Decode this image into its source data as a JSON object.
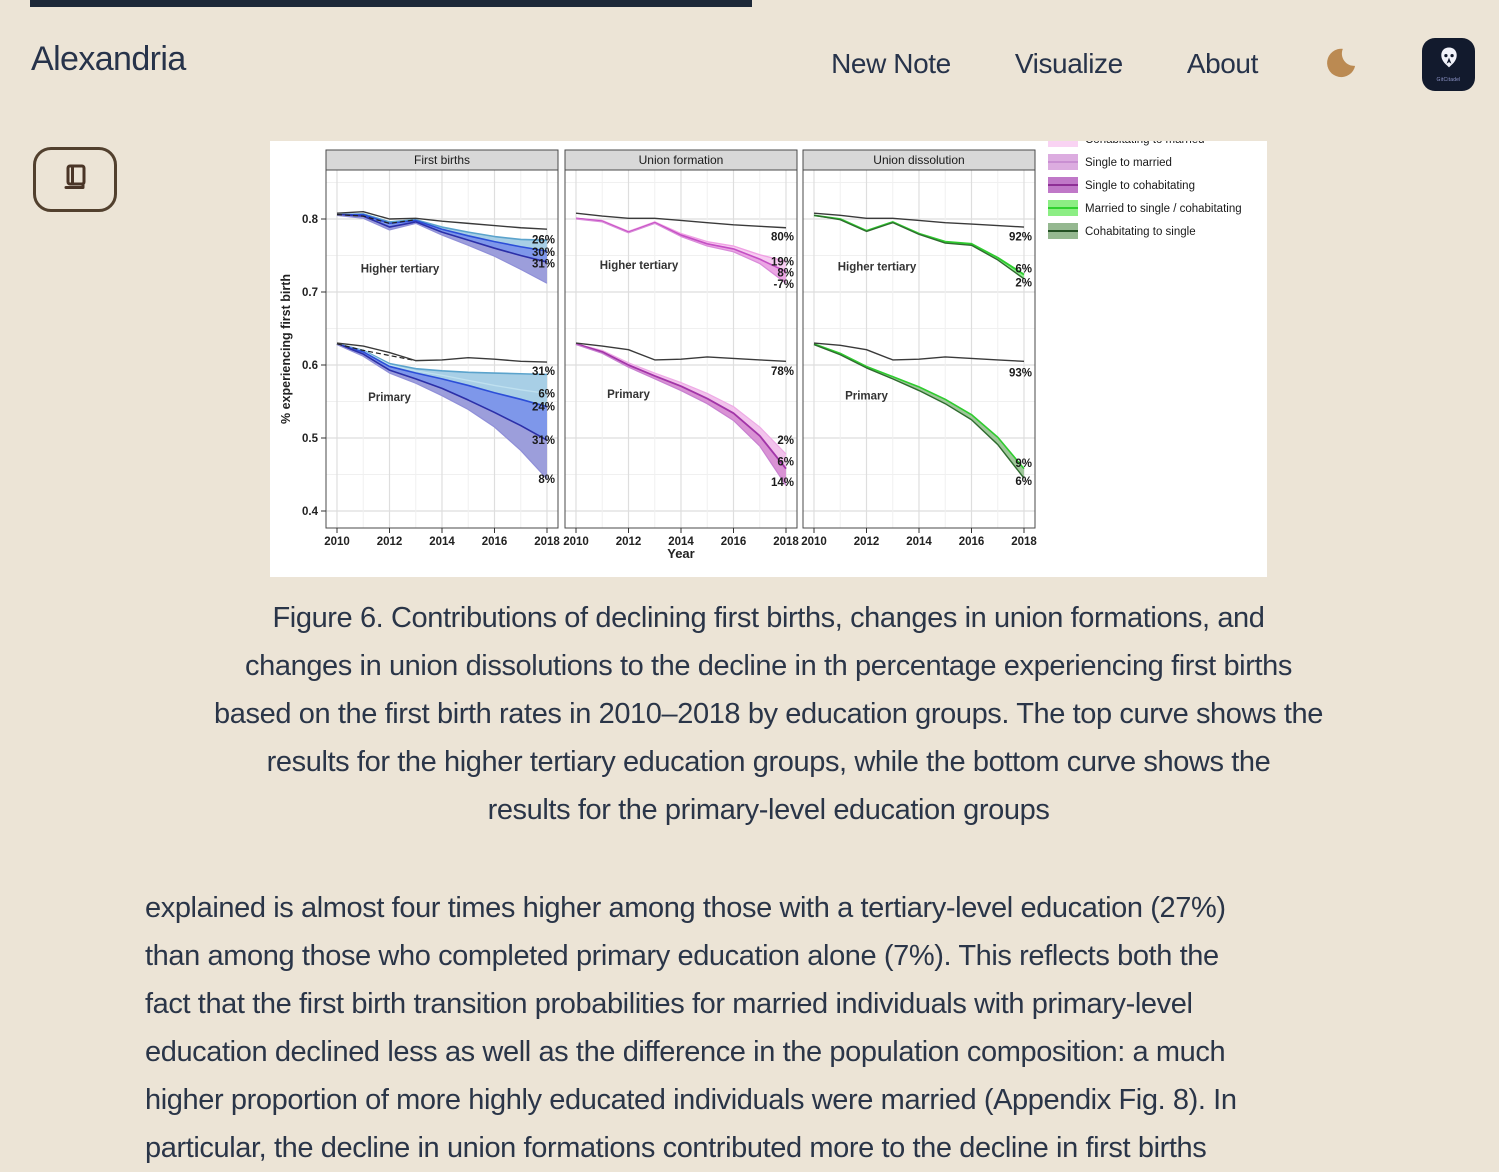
{
  "theme": {
    "page_bg": "#ece4d6",
    "ink": "#2a3548",
    "brown_accent": "#52402e",
    "moon_color": "#bb8a52",
    "badge_bg": "#121a2d",
    "topstrip_color": "#1d2838"
  },
  "header": {
    "brand": "Alexandria",
    "nav": [
      {
        "label": "New Note"
      },
      {
        "label": "Visualize"
      },
      {
        "label": "About"
      }
    ],
    "badge_label": "GitCitadel"
  },
  "figure_caption": {
    "lines": [
      "Figure 6. Contributions of declining first births, changes in union formations, and",
      "changes in union dissolutions to the decline in th percentage experiencing first births",
      "based on the first birth rates in 2010–2018 by education groups. The top curve shows the",
      "results for the higher tertiary education groups, while the bottom curve shows the",
      "results for the primary-level education groups"
    ]
  },
  "article": {
    "lines": [
      "explained is almost four times higher among those with a tertiary-level education (27%)",
      "than among those who completed primary education alone (7%). This reflects both the",
      "fact that the first birth transition probabilities for married individuals with primary-level",
      "education declined less as well as the difference in the population composition: a much",
      "higher proportion of more highly educated individuals were married (Appendix Fig. 8). In"
    ],
    "clipped_continuation": "particular, the decline in union formations contributed more to the decline in first births"
  },
  "chart_data": {
    "type": "line",
    "xlabel": "Year",
    "ylabel": "% experiencing first birth",
    "x": [
      2010,
      2011,
      2012,
      2013,
      2014,
      2015,
      2016,
      2017,
      2018
    ],
    "xticks": [
      2010,
      2012,
      2014,
      2016,
      2018
    ],
    "yticks": [
      0.4,
      0.5,
      0.6,
      0.7,
      0.8
    ],
    "ylim": [
      0.377,
      0.867
    ],
    "grid": "on",
    "legend_position": "top-right",
    "legend": [
      {
        "label": "Cohabitating to married",
        "swatch": "#f9d3f3",
        "line": "#f0b3e8",
        "clipped": true
      },
      {
        "label": "Single to married",
        "swatch": "#dcace0",
        "line": "#c98fd2",
        "clipped": false
      },
      {
        "label": "Single to cohabitating",
        "swatch": "#c078c8",
        "line": "#8e2f96",
        "clipped": false
      },
      {
        "label": "Married to single / cohabitating",
        "swatch": "#8cee84",
        "line": "#2fd12f",
        "clipped": false
      },
      {
        "label": "Cohabitating to single",
        "swatch": "#95b890",
        "line": "#235023",
        "clipped": false
      }
    ],
    "panels": [
      {
        "title": "First births",
        "groups": [
          {
            "name": "Higher tertiary",
            "name_at": {
              "year": 2012.4,
              "v": 0.732
            },
            "curves": [
              {
                "values": [
                  0.806,
                  0.807,
                  0.796,
                  0.799,
                  0.789,
                  0.782,
                  0.776,
                  0.772,
                  0.771
                ],
                "color": "#5ba3cc",
                "w": 1.6
              },
              {
                "values": [
                  0.806,
                  0.806,
                  0.794,
                  0.798,
                  0.786,
                  0.777,
                  0.769,
                  0.762,
                  0.756
                ],
                "color": "#2c4ed8",
                "w": 1.6
              },
              {
                "values": [
                  0.806,
                  0.804,
                  0.789,
                  0.796,
                  0.782,
                  0.771,
                  0.76,
                  0.75,
                  0.741
                ],
                "color": "#2b2fa8",
                "w": 1.6
              },
              {
                "values": [
                  0.805,
                  0.801,
                  0.785,
                  0.794,
                  0.778,
                  0.764,
                  0.749,
                  0.731,
                  0.712
                ],
                "color": "#8f8fd8",
                "w": 1.2
              },
              {
                "values": [
                  0.806,
                  0.804,
                  0.794,
                  0.799
                ],
                "x": [
                  2010,
                  2011,
                  2012,
                  2013
                ],
                "color": "#222222",
                "w": 1.2,
                "dash": "5,3"
              },
              {
                "values": [
                  0.808,
                  0.81,
                  0.8,
                  0.801,
                  0.797,
                  0.794,
                  0.791,
                  0.788,
                  0.786
                ],
                "color": "#3a3a3a",
                "w": 1.4
              }
            ],
            "ribbons": [
              {
                "a": 0,
                "b": 1,
                "fill": "#a8cfe6"
              },
              {
                "a": 1,
                "b": 2,
                "fill": "#7e97ea"
              },
              {
                "a": 2,
                "b": 3,
                "fill": "#9c9edb"
              }
            ],
            "labels": [
              {
                "text": "26%",
                "v": 0.772
              },
              {
                "text": "30%",
                "v": 0.755
              },
              {
                "text": "31%",
                "v": 0.739
              }
            ]
          },
          {
            "name": "Primary",
            "name_at": {
              "year": 2012.0,
              "v": 0.556
            },
            "curves": [
              {
                "values": [
                  0.629,
                  0.62,
                  0.602,
                  0.595,
                  0.592,
                  0.59,
                  0.589,
                  0.588,
                  0.587
                ],
                "color": "#5ba3cc",
                "w": 1.6
              },
              {
                "values": [
                  0.629,
                  0.619,
                  0.6,
                  0.592,
                  0.586,
                  0.579,
                  0.572,
                  0.566,
                  0.561
                ],
                "color": "#bfe0ef",
                "w": 1.3
              },
              {
                "values": [
                  0.629,
                  0.618,
                  0.598,
                  0.589,
                  0.581,
                  0.572,
                  0.562,
                  0.553,
                  0.543
                ],
                "color": "#2c4ed8",
                "w": 1.6
              },
              {
                "values": [
                  0.629,
                  0.615,
                  0.593,
                  0.581,
                  0.568,
                  0.552,
                  0.535,
                  0.517,
                  0.497
                ],
                "color": "#2b2fa8",
                "w": 1.6
              },
              {
                "values": [
                  0.628,
                  0.612,
                  0.589,
                  0.575,
                  0.558,
                  0.539,
                  0.515,
                  0.483,
                  0.444
                ],
                "color": "#8f8fd8",
                "w": 1.2
              },
              {
                "values": [
                  0.629,
                  0.62,
                  0.613,
                  0.606
                ],
                "x": [
                  2010,
                  2011,
                  2012,
                  2013
                ],
                "color": "#222222",
                "w": 1.2,
                "dash": "5,3"
              },
              {
                "values": [
                  0.63,
                  0.626,
                  0.617,
                  0.606,
                  0.607,
                  0.61,
                  0.608,
                  0.605,
                  0.604
                ],
                "color": "#3a3a3a",
                "w": 1.4
              }
            ],
            "ribbons": [
              {
                "a": 0,
                "b": 2,
                "fill": "#a8cfe6"
              },
              {
                "a": 2,
                "b": 3,
                "fill": "#7e97ea"
              },
              {
                "a": 3,
                "b": 4,
                "fill": "#9c9edb"
              }
            ],
            "labels": [
              {
                "text": "31%",
                "v": 0.592
              },
              {
                "text": "6%",
                "v": 0.561
              },
              {
                "text": "24%",
                "v": 0.543
              },
              {
                "text": "31%",
                "v": 0.497
              },
              {
                "text": "8%",
                "v": 0.444
              }
            ]
          }
        ]
      },
      {
        "title": "Union formation",
        "groups": [
          {
            "name": "Higher tertiary",
            "name_at": {
              "year": 2012.4,
              "v": 0.737
            },
            "curves": [
              {
                "values": [
                  0.801,
                  0.798,
                  0.783,
                  0.796,
                  0.78,
                  0.769,
                  0.763,
                  0.751,
                  0.742
                ],
                "color": "#f0a0e4",
                "w": 1.4
              },
              {
                "values": [
                  0.801,
                  0.797,
                  0.782,
                  0.795,
                  0.778,
                  0.766,
                  0.759,
                  0.745,
                  0.728
                ],
                "color": "#c44fc4",
                "w": 1.6
              },
              {
                "values": [
                  0.8,
                  0.796,
                  0.781,
                  0.794,
                  0.776,
                  0.763,
                  0.755,
                  0.739,
                  0.712
                ],
                "color": "#d98ad9",
                "w": 1.2
              },
              {
                "values": [
                  0.808,
                  0.804,
                  0.801,
                  0.801,
                  0.798,
                  0.795,
                  0.792,
                  0.79,
                  0.788
                ],
                "color": "#3a3a3a",
                "w": 1.4
              }
            ],
            "ribbons": [
              {
                "a": 0,
                "b": 1,
                "fill": "#f7ccf1"
              },
              {
                "a": 1,
                "b": 2,
                "fill": "#eba6e4"
              }
            ],
            "labels": [
              {
                "text": "80%",
                "v": 0.776
              },
              {
                "text": "19%",
                "v": 0.742
              },
              {
                "text": "8%",
                "v": 0.727
              },
              {
                "text": "-7%",
                "v": 0.711
              }
            ]
          },
          {
            "name": "Primary",
            "name_at": {
              "year": 2012.0,
              "v": 0.56
            },
            "curves": [
              {
                "values": [
                  0.629,
                  0.62,
                  0.603,
                  0.589,
                  0.576,
                  0.561,
                  0.543,
                  0.515,
                  0.478
                ],
                "color": "#eeaae6",
                "w": 1.2
              },
              {
                "values": [
                  0.629,
                  0.618,
                  0.6,
                  0.585,
                  0.571,
                  0.554,
                  0.534,
                  0.503,
                  0.458
                ],
                "color": "#a235a8",
                "w": 1.8
              },
              {
                "values": [
                  0.628,
                  0.616,
                  0.597,
                  0.581,
                  0.565,
                  0.547,
                  0.524,
                  0.489,
                  0.435
                ],
                "color": "#c77fd0",
                "w": 1.2
              },
              {
                "values": [
                  0.63,
                  0.626,
                  0.621,
                  0.607,
                  0.608,
                  0.611,
                  0.609,
                  0.607,
                  0.605
                ],
                "color": "#3a3a3a",
                "w": 1.4
              }
            ],
            "ribbons": [
              {
                "a": 0,
                "b": 1,
                "fill": "#f2c3ec"
              },
              {
                "a": 1,
                "b": 2,
                "fill": "#d992d4"
              }
            ],
            "labels": [
              {
                "text": "78%",
                "v": 0.592
              },
              {
                "text": "2%",
                "v": 0.497
              },
              {
                "text": "6%",
                "v": 0.468
              },
              {
                "text": "14%",
                "v": 0.44
              }
            ]
          }
        ]
      },
      {
        "title": "Union dissolution",
        "groups": [
          {
            "name": "Higher tertiary",
            "name_at": {
              "year": 2012.4,
              "v": 0.735
            },
            "curves": [
              {
                "values": [
                  0.805,
                  0.8,
                  0.784,
                  0.796,
                  0.78,
                  0.769,
                  0.766,
                  0.747,
                  0.724
                ],
                "color": "#2ecc2e",
                "w": 1.8
              },
              {
                "values": [
                  0.805,
                  0.799,
                  0.783,
                  0.795,
                  0.779,
                  0.767,
                  0.764,
                  0.744,
                  0.718
                ],
                "color": "#2e6b2e",
                "w": 1.4
              },
              {
                "values": [
                  0.808,
                  0.805,
                  0.801,
                  0.801,
                  0.798,
                  0.795,
                  0.793,
                  0.791,
                  0.789
                ],
                "color": "#3a3a3a",
                "w": 1.4
              }
            ],
            "ribbons": [
              {
                "a": 0,
                "b": 1,
                "fill": "#8df08d"
              }
            ],
            "labels": [
              {
                "text": "92%",
                "v": 0.776
              },
              {
                "text": "6%",
                "v": 0.732
              },
              {
                "text": "2%",
                "v": 0.713
              }
            ]
          },
          {
            "name": "Primary",
            "name_at": {
              "year": 2012.0,
              "v": 0.558
            },
            "curves": [
              {
                "values": [
                  0.629,
                  0.616,
                  0.598,
                  0.584,
                  0.57,
                  0.553,
                  0.532,
                  0.501,
                  0.458
                ],
                "color": "#2ecc2e",
                "w": 1.6
              },
              {
                "values": [
                  0.628,
                  0.614,
                  0.596,
                  0.581,
                  0.565,
                  0.547,
                  0.525,
                  0.491,
                  0.445
                ],
                "color": "#2e6b2e",
                "w": 1.4
              },
              {
                "values": [
                  0.63,
                  0.627,
                  0.621,
                  0.607,
                  0.608,
                  0.611,
                  0.609,
                  0.607,
                  0.605
                ],
                "color": "#3a3a3a",
                "w": 1.4
              }
            ],
            "ribbons": [
              {
                "a": 0,
                "b": 1,
                "fill": "#9fc79a"
              }
            ],
            "labels": [
              {
                "text": "93%",
                "v": 0.59
              },
              {
                "text": "9%",
                "v": 0.466
              },
              {
                "text": "6%",
                "v": 0.441
              }
            ]
          }
        ]
      }
    ]
  }
}
